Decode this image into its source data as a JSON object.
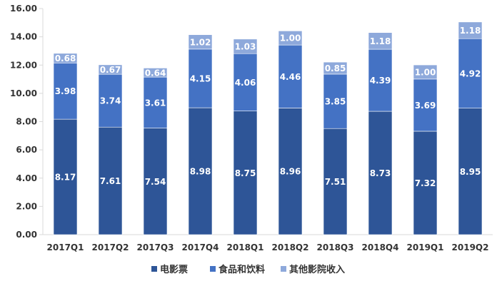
{
  "chart_data": {
    "type": "bar",
    "stacked": true,
    "categories": [
      "2017Q1",
      "2017Q2",
      "2017Q3",
      "2017Q4",
      "2018Q1",
      "2018Q2",
      "2018Q3",
      "2018Q4",
      "2019Q1",
      "2019Q2"
    ],
    "series": [
      {
        "name": "电影票",
        "color": "#2e5597",
        "values": [
          8.17,
          7.61,
          7.54,
          8.98,
          8.75,
          8.96,
          7.51,
          8.73,
          7.32,
          8.95
        ]
      },
      {
        "name": "食品和饮料",
        "color": "#4472c4",
        "values": [
          3.98,
          3.74,
          3.61,
          4.15,
          4.06,
          4.46,
          3.85,
          4.39,
          3.69,
          4.92
        ]
      },
      {
        "name": "其他影院收入",
        "color": "#8ea9db",
        "values": [
          0.68,
          0.67,
          0.64,
          1.02,
          1.03,
          1.0,
          0.85,
          1.18,
          1.0,
          1.18
        ]
      }
    ],
    "ylim": [
      0,
      16
    ],
    "yticks": [
      "0.00",
      "2.00",
      "4.00",
      "6.00",
      "8.00",
      "10.00",
      "12.00",
      "14.00",
      "16.00"
    ],
    "value_labels": [
      [
        "8.17",
        "7.61",
        "7.54",
        "8.98",
        "8.75",
        "8.96",
        "7.51",
        "8.73",
        "7.32",
        "8.95"
      ],
      [
        "3.98",
        "3.74",
        "3.61",
        "4.15",
        "4.06",
        "4.46",
        "3.85",
        "4.39",
        "3.69",
        "4.92"
      ],
      [
        "0.68",
        "0.67",
        "0.64",
        "1.02",
        "1.03",
        "1.00",
        "0.85",
        "1.18",
        "1.00",
        "1.18"
      ]
    ],
    "title": "",
    "xlabel": "",
    "ylabel": "",
    "grid": false,
    "legend_position": "bottom"
  }
}
